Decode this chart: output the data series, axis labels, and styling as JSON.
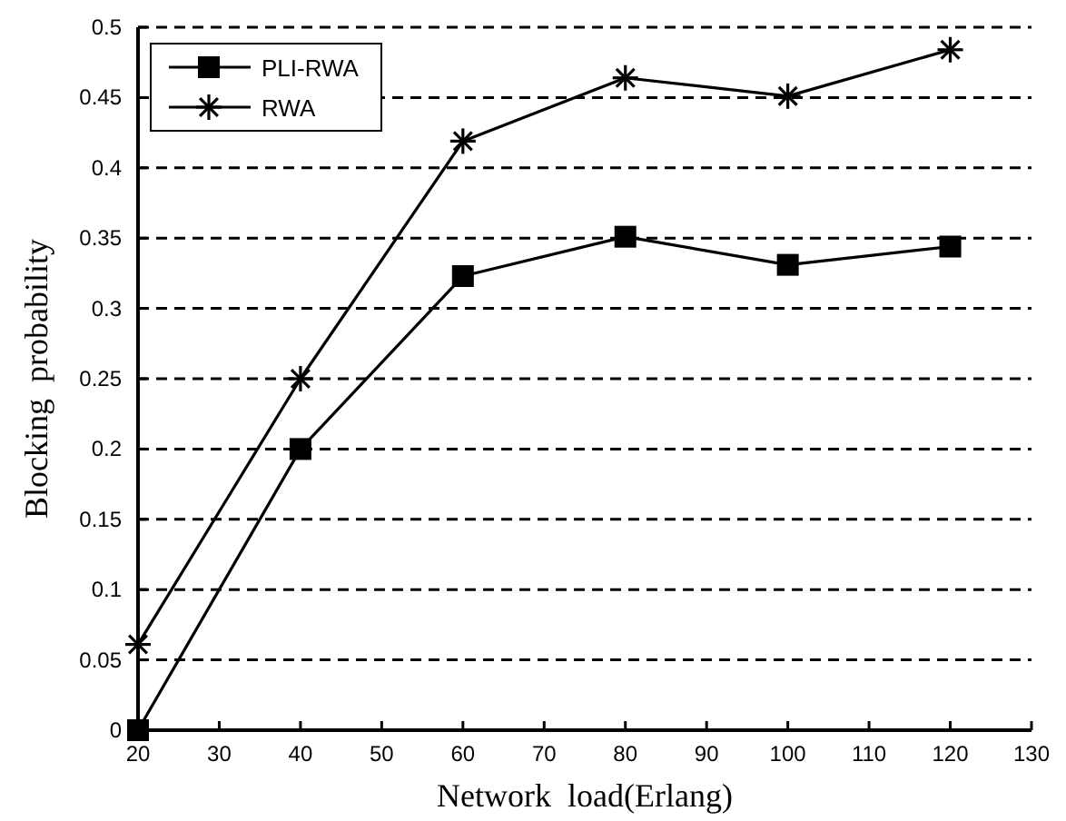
{
  "chart_data": {
    "type": "line",
    "xlabel": "Network  load(Erlang)",
    "ylabel": "Blocking  probability",
    "x": [
      20,
      40,
      60,
      80,
      100,
      120
    ],
    "series": [
      {
        "name": "PLI-RWA",
        "color": "#000000",
        "marker": "square",
        "values": [
          0,
          0.2,
          0.323,
          0.351,
          0.331,
          0.344
        ]
      },
      {
        "name": "RWA",
        "color": "#000000",
        "marker": "cross",
        "values": [
          0.061,
          0.25,
          0.419,
          0.464,
          0.451,
          0.484
        ]
      }
    ],
    "xlim": [
      20,
      130
    ],
    "xticks": [
      20,
      30,
      40,
      50,
      60,
      70,
      80,
      90,
      100,
      110,
      120,
      130
    ],
    "ylim": [
      0,
      0.5
    ],
    "yticks": [
      0,
      0.05,
      0.1,
      0.15,
      0.2,
      0.25,
      0.3,
      0.35,
      0.4,
      0.45,
      0.5
    ],
    "grid": "y",
    "legend": "top left",
    "line_style": "solid"
  }
}
